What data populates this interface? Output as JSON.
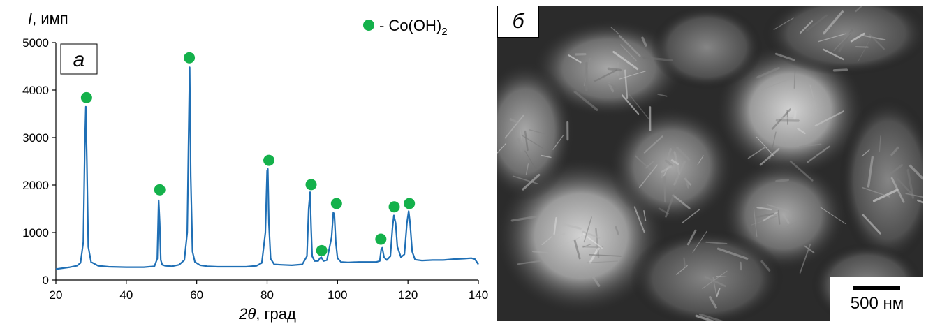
{
  "chart_data": {
    "type": "line",
    "x_label_symbol": "2θ",
    "x_label_unit": ", град",
    "y_label_symbol": "I",
    "y_label_unit": ", имп",
    "xlim": [
      20,
      140
    ],
    "ylim": [
      0,
      5000
    ],
    "x_ticks": [
      20,
      40,
      60,
      80,
      100,
      120,
      140
    ],
    "y_ticks": [
      0,
      1000,
      2000,
      3000,
      4000,
      5000
    ],
    "grid": false,
    "line_color": "#1f6fb5",
    "marker_color": "#14b14b",
    "legend": {
      "prefix": "- Co(OH)",
      "subscript": "2",
      "position": "top-right"
    },
    "panel_label": "а",
    "series": [
      {
        "x": [
          20,
          22,
          24,
          26,
          27,
          27.8,
          28.2,
          28.5,
          28.8,
          29.2,
          30,
          32,
          35,
          40,
          45,
          48,
          48.8,
          49.2,
          49.5,
          49.8,
          50.2,
          51,
          53,
          55,
          56.5,
          57.3,
          57.8,
          58.0,
          58.3,
          58.8,
          59.5,
          61,
          63,
          66,
          70,
          74,
          77,
          78.5,
          79.5,
          80.0,
          80.2,
          80.5,
          81.0,
          82,
          84,
          87,
          90,
          91.3,
          91.8,
          92.2,
          92.5,
          92.8,
          93.5,
          94.5,
          95,
          95.4,
          96,
          97,
          98.3,
          98.8,
          99.1,
          99.5,
          100,
          101,
          103,
          106,
          109,
          111,
          112.0,
          112.4,
          112.7,
          113.2,
          114,
          115,
          115.6,
          116.0,
          116.5,
          117,
          118,
          119,
          119.7,
          120.2,
          120.6,
          121.2,
          122,
          124,
          127,
          130,
          133,
          136,
          138,
          139,
          140
        ],
        "values": [
          230,
          250,
          270,
          300,
          360,
          800,
          2700,
          3650,
          2500,
          700,
          380,
          300,
          280,
          270,
          270,
          290,
          450,
          1680,
          1200,
          420,
          320,
          300,
          290,
          320,
          420,
          1000,
          3500,
          4480,
          2200,
          600,
          380,
          310,
          290,
          280,
          280,
          280,
          300,
          360,
          1000,
          2300,
          2340,
          1200,
          450,
          330,
          320,
          310,
          330,
          500,
          1500,
          1850,
          1100,
          500,
          400,
          400,
          460,
          480,
          400,
          420,
          900,
          1420,
          1380,
          800,
          460,
          380,
          370,
          380,
          380,
          380,
          400,
          650,
          680,
          480,
          420,
          500,
          1100,
          1360,
          1200,
          700,
          480,
          540,
          1200,
          1450,
          1200,
          600,
          430,
          410,
          420,
          420,
          440,
          450,
          460,
          440,
          330
        ]
      }
    ],
    "markers": {
      "x": [
        28.7,
        49.5,
        57.9,
        80.5,
        92.5,
        95.5,
        99.7,
        112.3,
        116.1,
        120.4
      ],
      "y": [
        3840,
        1900,
        4680,
        2520,
        2010,
        620,
        1610,
        860,
        1540,
        1610
      ]
    }
  },
  "sem_image": {
    "panel_label": "б",
    "scale_label": "500 нм"
  }
}
